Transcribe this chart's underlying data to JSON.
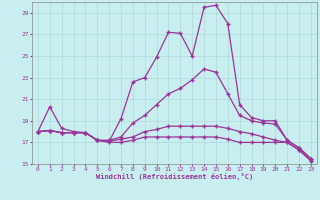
{
  "background_color": "#c8eef0",
  "grid_color": "#b0d8da",
  "line_color": "#993399",
  "marker_color": "#993399",
  "xlabel": "Windchill (Refroidissement éolien,°C)",
  "xlabel_color": "#993399",
  "tick_color": "#993399",
  "xlim": [
    -0.5,
    23.5
  ],
  "ylim": [
    15,
    30
  ],
  "yticks": [
    15,
    17,
    19,
    21,
    23,
    25,
    27,
    29
  ],
  "xticks": [
    0,
    1,
    2,
    3,
    4,
    5,
    6,
    7,
    8,
    9,
    10,
    11,
    12,
    13,
    14,
    15,
    16,
    17,
    18,
    19,
    20,
    21,
    22,
    23
  ],
  "curves": [
    [
      18.0,
      20.3,
      18.3,
      18.0,
      17.9,
      17.2,
      17.1,
      19.2,
      22.6,
      23.0,
      24.9,
      27.2,
      27.1,
      25.0,
      29.5,
      29.7,
      28.0,
      20.5,
      19.3,
      19.0,
      19.0,
      17.2,
      16.5,
      15.5
    ],
    [
      18.0,
      18.1,
      17.9,
      17.9,
      17.9,
      17.2,
      17.2,
      17.5,
      18.8,
      19.5,
      20.5,
      21.5,
      22.0,
      22.8,
      23.8,
      23.5,
      21.5,
      19.5,
      19.0,
      18.8,
      18.7,
      17.2,
      16.5,
      15.5
    ],
    [
      18.0,
      18.1,
      17.9,
      17.9,
      17.9,
      17.2,
      17.1,
      17.3,
      17.5,
      18.0,
      18.2,
      18.5,
      18.5,
      18.5,
      18.5,
      18.5,
      18.3,
      18.0,
      17.8,
      17.5,
      17.2,
      17.0,
      16.3,
      15.3
    ],
    [
      18.0,
      18.1,
      17.9,
      17.9,
      17.9,
      17.2,
      17.0,
      17.0,
      17.2,
      17.5,
      17.5,
      17.5,
      17.5,
      17.5,
      17.5,
      17.5,
      17.3,
      17.0,
      17.0,
      17.0,
      17.0,
      17.0,
      16.3,
      15.3
    ]
  ]
}
